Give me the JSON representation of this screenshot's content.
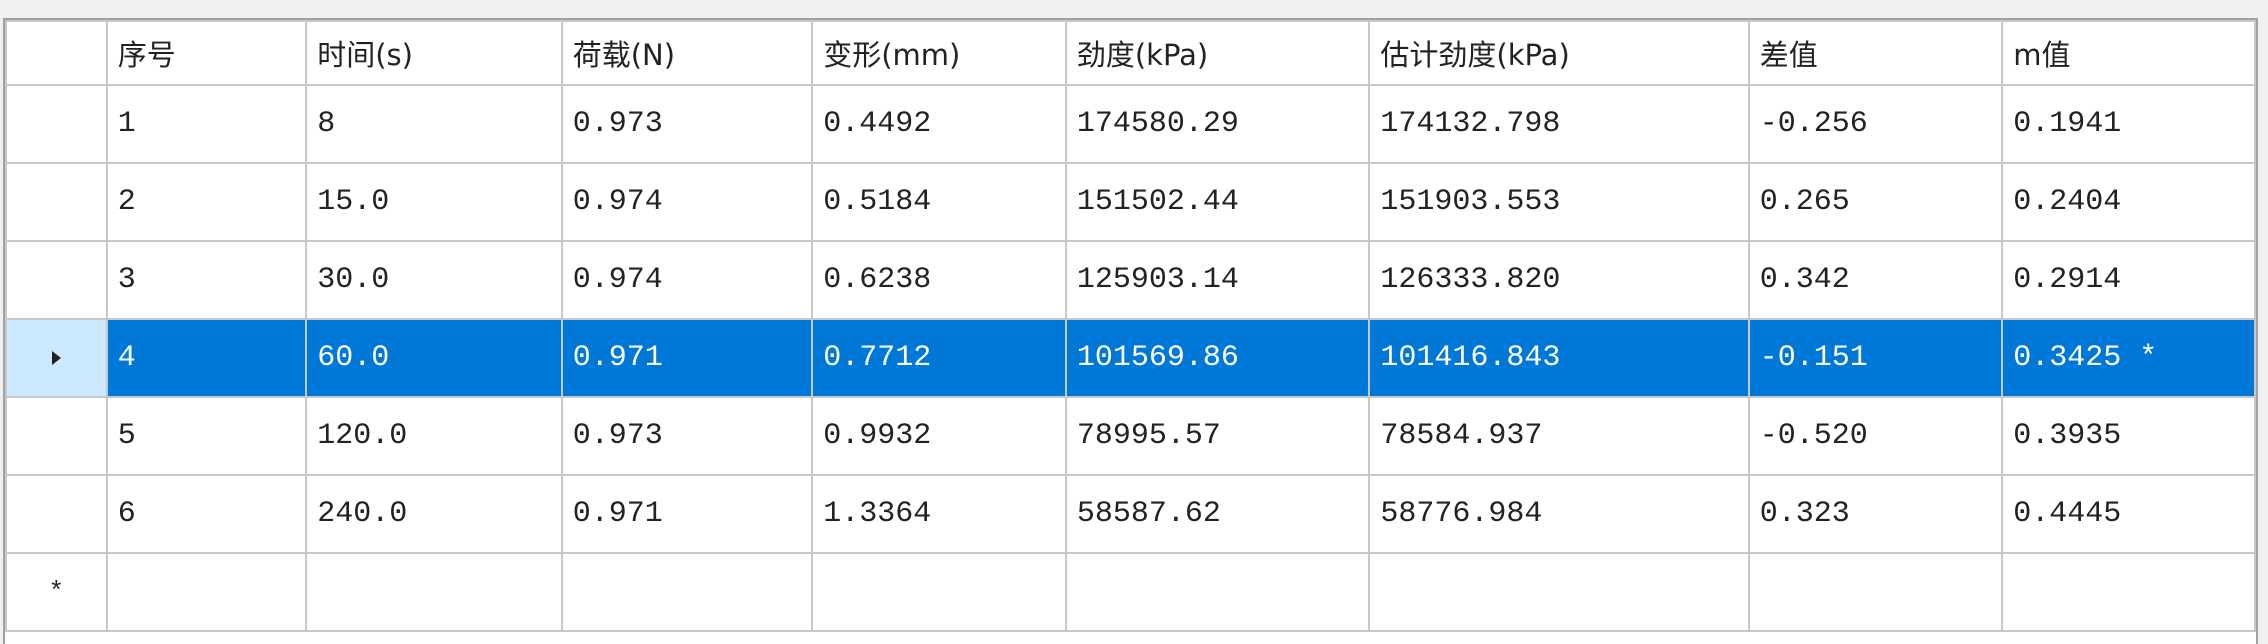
{
  "columns": [
    "序号",
    "时间(s)",
    "荷载(N)",
    "变形(mm)",
    "劲度(kPa)",
    "估计劲度(kPa)",
    "差值",
    "m值"
  ],
  "rows": [
    [
      "1",
      "8",
      "0.973",
      "0.4492",
      "174580.29",
      "174132.798",
      "-0.256",
      "0.1941"
    ],
    [
      "2",
      "15.0",
      "0.974",
      "0.5184",
      "151502.44",
      "151903.553",
      "0.265",
      "0.2404"
    ],
    [
      "3",
      "30.0",
      "0.974",
      "0.6238",
      "125903.14",
      "126333.820",
      "0.342",
      "0.2914"
    ],
    [
      "4",
      "60.0",
      "0.971",
      "0.7712",
      "101569.86",
      "101416.843",
      "-0.151",
      "0.3425 *"
    ],
    [
      "5",
      "120.0",
      "0.973",
      "0.9932",
      "78995.57",
      "78584.937",
      "-0.520",
      "0.3935"
    ],
    [
      "6",
      "240.0",
      "0.971",
      "1.3364",
      "58587.62",
      "58776.984",
      "0.323",
      "0.4445"
    ]
  ],
  "selected_row": 3,
  "new_row_marker": "*",
  "colors": {
    "selection": "#0078d7",
    "row_header_selected": "#cce8ff",
    "grid_line": "#c8c8c8"
  },
  "icons": {
    "current_row": "triangle-right-icon",
    "new_row": "new-row-icon"
  }
}
